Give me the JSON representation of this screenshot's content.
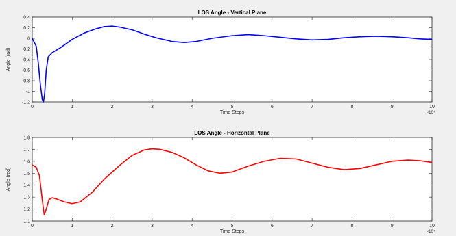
{
  "chart_data": [
    {
      "type": "line",
      "title": "LOS Angle - Vertical Plane",
      "xlabel": "Time Steps",
      "ylabel": "Angle (rad)",
      "x_multiplier_label": "×10⁴",
      "xlim": [
        0,
        10
      ],
      "ylim": [
        -1.2,
        0.4
      ],
      "xticks": [
        0,
        1,
        2,
        3,
        4,
        5,
        6,
        7,
        8,
        9,
        10
      ],
      "yticks": [
        -1.2,
        -1,
        -0.8,
        -0.6,
        -0.4,
        -0.2,
        0,
        0.2,
        0.4
      ],
      "ytick_labels": [
        "-1.2",
        "-1",
        "-0.8",
        "-0.6",
        "-0.4",
        "-0.2",
        "0",
        "0.2",
        "0.4"
      ],
      "grid": false,
      "series": [
        {
          "color": "#0000ff",
          "x": [
            0,
            0.1,
            0.15,
            0.2,
            0.25,
            0.28,
            0.31,
            0.35,
            0.4,
            0.5,
            0.7,
            1.0,
            1.3,
            1.6,
            1.8,
            2.0,
            2.2,
            2.5,
            2.8,
            3.1,
            3.5,
            3.8,
            4.1,
            4.5,
            5.0,
            5.4,
            5.8,
            6.2,
            6.6,
            7.0,
            7.4,
            7.8,
            8.2,
            8.6,
            9.0,
            9.4,
            9.7,
            10.0
          ],
          "y": [
            0.0,
            -0.15,
            -0.45,
            -0.85,
            -1.15,
            -1.2,
            -1.05,
            -0.6,
            -0.35,
            -0.27,
            -0.18,
            -0.02,
            0.1,
            0.18,
            0.22,
            0.23,
            0.21,
            0.16,
            0.08,
            0.01,
            -0.06,
            -0.08,
            -0.06,
            0.0,
            0.05,
            0.07,
            0.05,
            0.02,
            -0.01,
            -0.03,
            -0.02,
            0.01,
            0.03,
            0.04,
            0.03,
            0.01,
            -0.01,
            -0.02
          ]
        }
      ]
    },
    {
      "type": "line",
      "title": "LOS Angle - Horizontal Plane",
      "xlabel": "Time Steps",
      "ylabel": "Angle (rad)",
      "x_multiplier_label": "×10⁴",
      "xlim": [
        0,
        10
      ],
      "ylim": [
        1.1,
        1.8
      ],
      "xticks": [
        0,
        1,
        2,
        3,
        4,
        5,
        6,
        7,
        8,
        9,
        10
      ],
      "yticks": [
        1.1,
        1.2,
        1.3,
        1.4,
        1.5,
        1.6,
        1.7,
        1.8
      ],
      "ytick_labels": [
        "1.1",
        "1.2",
        "1.3",
        "1.4",
        "1.5",
        "1.6",
        "1.7",
        "1.8"
      ],
      "grid": false,
      "series": [
        {
          "color": "#ff0000",
          "x": [
            0,
            0.1,
            0.18,
            0.25,
            0.3,
            0.35,
            0.42,
            0.5,
            0.6,
            0.8,
            1.0,
            1.2,
            1.5,
            1.8,
            2.2,
            2.5,
            2.8,
            3.0,
            3.2,
            3.5,
            3.8,
            4.1,
            4.4,
            4.7,
            5.0,
            5.4,
            5.8,
            6.2,
            6.6,
            7.0,
            7.4,
            7.8,
            8.2,
            8.6,
            9.0,
            9.4,
            9.7,
            10.0
          ],
          "y": [
            1.57,
            1.55,
            1.48,
            1.28,
            1.15,
            1.2,
            1.28,
            1.295,
            1.285,
            1.26,
            1.245,
            1.26,
            1.34,
            1.45,
            1.57,
            1.65,
            1.695,
            1.705,
            1.7,
            1.675,
            1.63,
            1.57,
            1.52,
            1.5,
            1.51,
            1.56,
            1.6,
            1.625,
            1.62,
            1.585,
            1.55,
            1.53,
            1.54,
            1.57,
            1.6,
            1.61,
            1.605,
            1.59
          ]
        }
      ]
    }
  ]
}
